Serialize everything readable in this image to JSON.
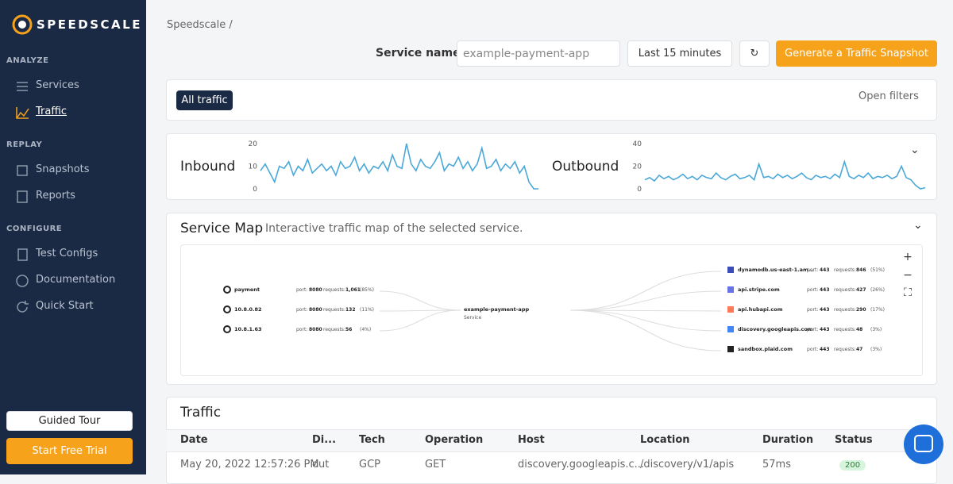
{
  "sidebar": {
    "brand": "SPEEDSCALE",
    "sections": [
      {
        "title": "ANALYZE",
        "items": [
          "Services",
          "Traffic"
        ]
      },
      {
        "title": "REPLAY",
        "items": [
          "Snapshots",
          "Reports"
        ]
      },
      {
        "title": "CONFIGURE",
        "items": [
          "Test Configs",
          "Documentation",
          "Quick Start"
        ]
      }
    ],
    "buttons": [
      "Guided Tour",
      "Start Free Trial"
    ]
  },
  "breadcrumb": {
    "root": "Speedscale",
    "separator": "/"
  },
  "toolbar": {
    "service_label": "Service name:",
    "service_value": "example-payment-app",
    "time_range": "Last 15 minutes",
    "snapshot_button": "Generate a Traffic Snapshot"
  },
  "filters": {
    "tag": "All traffic",
    "open": "Open filters"
  },
  "chart_data": [
    {
      "type": "line",
      "title": "Inbound",
      "color": "#4aa8d8",
      "ylim": [
        0,
        20
      ],
      "yticks": [
        0,
        10,
        20
      ],
      "values": [
        8,
        11,
        7,
        3,
        10,
        9,
        12,
        6,
        10,
        8,
        13,
        7,
        9,
        11,
        8,
        10,
        6,
        12,
        9,
        10,
        14,
        8,
        11,
        7,
        10,
        9,
        12,
        8,
        15,
        10,
        9,
        20,
        11,
        8,
        13,
        10,
        9,
        12,
        16,
        8,
        11,
        10,
        14,
        9,
        12,
        8,
        11,
        18,
        9,
        10,
        13,
        8,
        11,
        9,
        12,
        7,
        10,
        3,
        0,
        0
      ]
    },
    {
      "type": "line",
      "title": "Outbound",
      "color": "#4aa8d8",
      "ylim": [
        0,
        40
      ],
      "yticks": [
        0,
        20,
        40
      ],
      "values": [
        8,
        10,
        7,
        12,
        9,
        11,
        8,
        10,
        13,
        9,
        11,
        8,
        12,
        10,
        9,
        14,
        10,
        8,
        11,
        13,
        9,
        10,
        12,
        8,
        22,
        10,
        11,
        9,
        13,
        10,
        12,
        9,
        11,
        14,
        10,
        8,
        12,
        10,
        11,
        9,
        13,
        10,
        24,
        11,
        9,
        12,
        10,
        14,
        9,
        11,
        10,
        12,
        9,
        11,
        20,
        10,
        8,
        3,
        0,
        1
      ]
    }
  ],
  "service_map": {
    "title": "Service Map",
    "subtitle": "Interactive traffic map of the selected service.",
    "port_label": "port:",
    "requests_label": "requests:",
    "center": {
      "name": "example-payment-app",
      "kind": "Service"
    },
    "inbound": [
      {
        "name": "payment",
        "port": "8080",
        "requests": "1,061",
        "share": "(85%)"
      },
      {
        "name": "10.8.0.82",
        "port": "8080",
        "requests": "132",
        "share": "(11%)"
      },
      {
        "name": "10.8.1.63",
        "port": "8080",
        "requests": "56",
        "share": "(4%)"
      }
    ],
    "outbound": [
      {
        "name": "dynamodb.us-east-1.am...",
        "port": "443",
        "requests": "846",
        "share": "(51%)"
      },
      {
        "name": "api.stripe.com",
        "port": "443",
        "requests": "427",
        "share": "(26%)"
      },
      {
        "name": "api.hubapi.com",
        "port": "443",
        "requests": "290",
        "share": "(17%)"
      },
      {
        "name": "discovery.googleapis.com",
        "port": "443",
        "requests": "48",
        "share": "(3%)"
      },
      {
        "name": "sandbox.plaid.com",
        "port": "443",
        "requests": "47",
        "share": "(3%)"
      }
    ]
  },
  "table": {
    "title": "Traffic",
    "columns": [
      "Date",
      "Di...",
      "Tech",
      "Operation",
      "Host",
      "Location",
      "Duration",
      "Status"
    ],
    "rows": [
      [
        "May 20, 2022 12:57:26 PM",
        "out",
        "GCP",
        "GET",
        "discovery.googleapis.c...",
        "/discovery/v1/apis",
        "57ms",
        "200"
      ]
    ]
  }
}
